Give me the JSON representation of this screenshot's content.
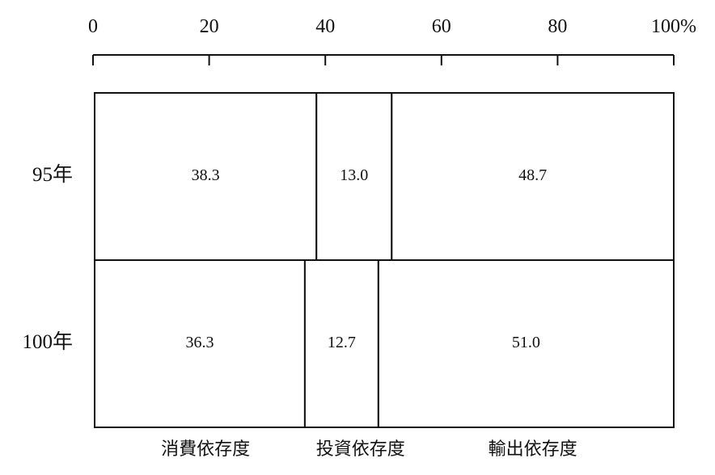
{
  "chart_data": {
    "type": "bar",
    "orientation": "horizontal",
    "stacked": true,
    "percent": true,
    "xlim": [
      0,
      100
    ],
    "x_ticks": [
      "0",
      "20",
      "40",
      "60",
      "80",
      "100%"
    ],
    "x_tick_values": [
      0,
      20,
      40,
      60,
      80,
      100
    ],
    "x_axis_position": "top",
    "categories": [
      "95年",
      "100年"
    ],
    "series": [
      {
        "name": "消費依存度",
        "values": [
          38.3,
          36.3
        ]
      },
      {
        "name": "投資依存度",
        "values": [
          13.0,
          12.7
        ]
      },
      {
        "name": "輸出依存度",
        "values": [
          48.7,
          51.0
        ]
      }
    ],
    "data_labels": [
      [
        "38.3",
        "13.0",
        "48.7"
      ],
      [
        "36.3",
        "12.7",
        "51.0"
      ]
    ],
    "legend_position": "bottom",
    "grid": false,
    "colors": {
      "line": "#111111",
      "fill": "#ffffff",
      "text": "#111111"
    }
  }
}
